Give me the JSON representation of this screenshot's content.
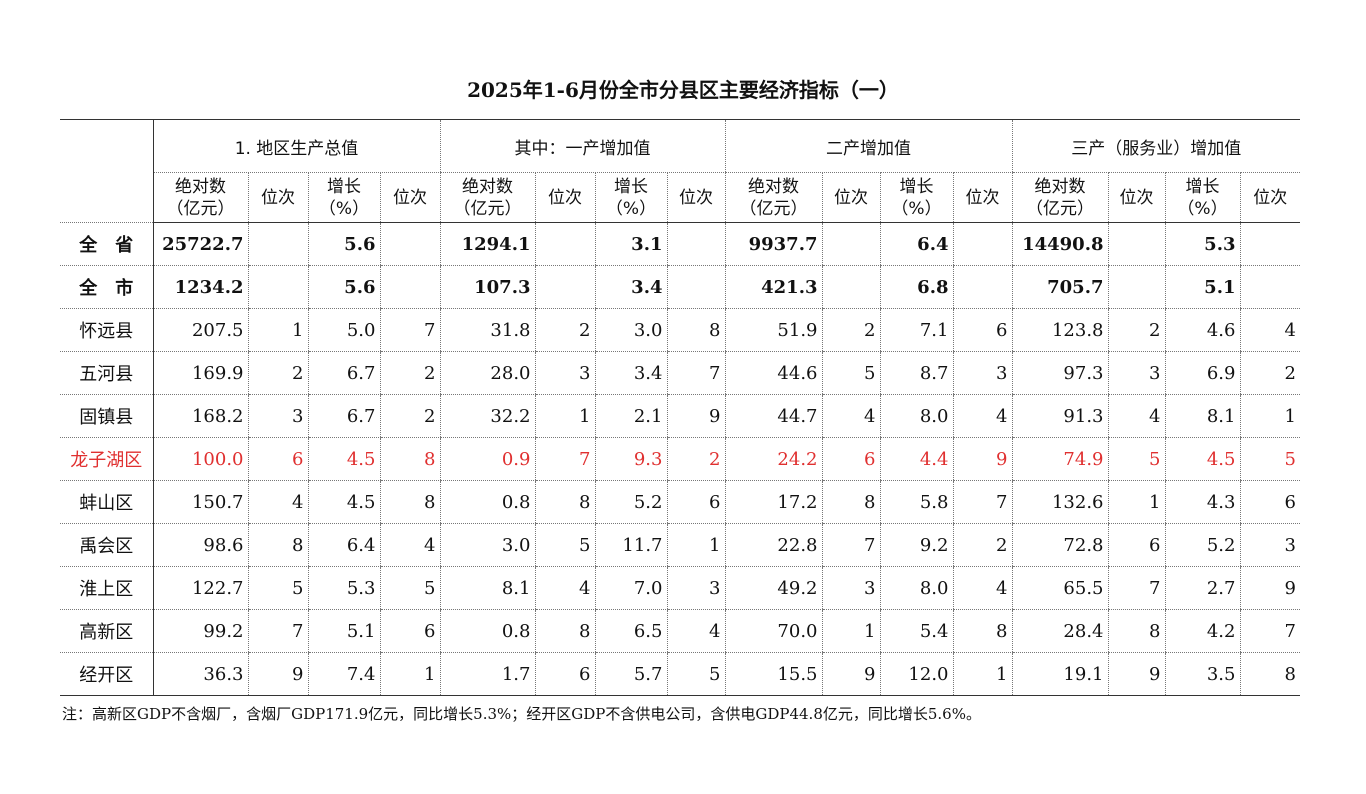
{
  "title": "2025年1-6月份全市分县区主要经济指标（一）",
  "groups": [
    "1. 地区生产总值",
    "其中：一产增加值",
    "二产增加值",
    "三产（服务业）增加值"
  ],
  "sub": {
    "abs1": "绝对数",
    "abs2": "（亿元）",
    "rank": "位次",
    "gr1": "增长",
    "gr2": "（%）"
  },
  "rows": [
    {
      "name": "全　省",
      "v": [
        "25722.7",
        "",
        "5.6",
        "",
        "1294.1",
        "",
        "3.1",
        "",
        "9937.7",
        "",
        "6.4",
        "",
        "14490.8",
        "",
        "5.3",
        ""
      ]
    },
    {
      "name": "全　市",
      "v": [
        "1234.2",
        "",
        "5.6",
        "",
        "107.3",
        "",
        "3.4",
        "",
        "421.3",
        "",
        "6.8",
        "",
        "705.7",
        "",
        "5.1",
        ""
      ]
    },
    {
      "name": "怀远县",
      "v": [
        "207.5",
        "1",
        "5.0",
        "7",
        "31.8",
        "2",
        "3.0",
        "8",
        "51.9",
        "2",
        "7.1",
        "6",
        "123.8",
        "2",
        "4.6",
        "4"
      ]
    },
    {
      "name": "五河县",
      "v": [
        "169.9",
        "2",
        "6.7",
        "2",
        "28.0",
        "3",
        "3.4",
        "7",
        "44.6",
        "5",
        "8.7",
        "3",
        "97.3",
        "3",
        "6.9",
        "2"
      ]
    },
    {
      "name": "固镇县",
      "v": [
        "168.2",
        "3",
        "6.7",
        "2",
        "32.2",
        "1",
        "2.1",
        "9",
        "44.7",
        "4",
        "8.0",
        "4",
        "91.3",
        "4",
        "8.1",
        "1"
      ]
    },
    {
      "name": "龙子湖区",
      "v": [
        "100.0",
        "6",
        "4.5",
        "8",
        "0.9",
        "7",
        "9.3",
        "2",
        "24.2",
        "6",
        "4.4",
        "9",
        "74.9",
        "5",
        "4.5",
        "5"
      ]
    },
    {
      "name": "蚌山区",
      "v": [
        "150.7",
        "4",
        "4.5",
        "8",
        "0.8",
        "8",
        "5.2",
        "6",
        "17.2",
        "8",
        "5.8",
        "7",
        "132.6",
        "1",
        "4.3",
        "6"
      ]
    },
    {
      "name": "禹会区",
      "v": [
        "98.6",
        "8",
        "6.4",
        "4",
        "3.0",
        "5",
        "11.7",
        "1",
        "22.8",
        "7",
        "9.2",
        "2",
        "72.8",
        "6",
        "5.2",
        "3"
      ]
    },
    {
      "name": "淮上区",
      "v": [
        "122.7",
        "5",
        "5.3",
        "5",
        "8.1",
        "4",
        "7.0",
        "3",
        "49.2",
        "3",
        "8.0",
        "4",
        "65.5",
        "7",
        "2.7",
        "9"
      ]
    },
    {
      "name": "高新区",
      "v": [
        "99.2",
        "7",
        "5.1",
        "6",
        "0.8",
        "8",
        "6.5",
        "4",
        "70.0",
        "1",
        "5.4",
        "8",
        "28.4",
        "8",
        "4.2",
        "7"
      ]
    },
    {
      "name": "经开区",
      "v": [
        "36.3",
        "9",
        "7.4",
        "1",
        "1.7",
        "6",
        "5.7",
        "5",
        "15.5",
        "9",
        "12.0",
        "1",
        "19.1",
        "9",
        "3.5",
        "8"
      ]
    }
  ],
  "highlight_color": "#e03030",
  "note": "注：高新区GDP不含烟厂，含烟厂GDP171.9亿元，同比增长5.3%；经开区GDP不含供电公司，含供电GDP44.8亿元，同比增长5.6%。"
}
